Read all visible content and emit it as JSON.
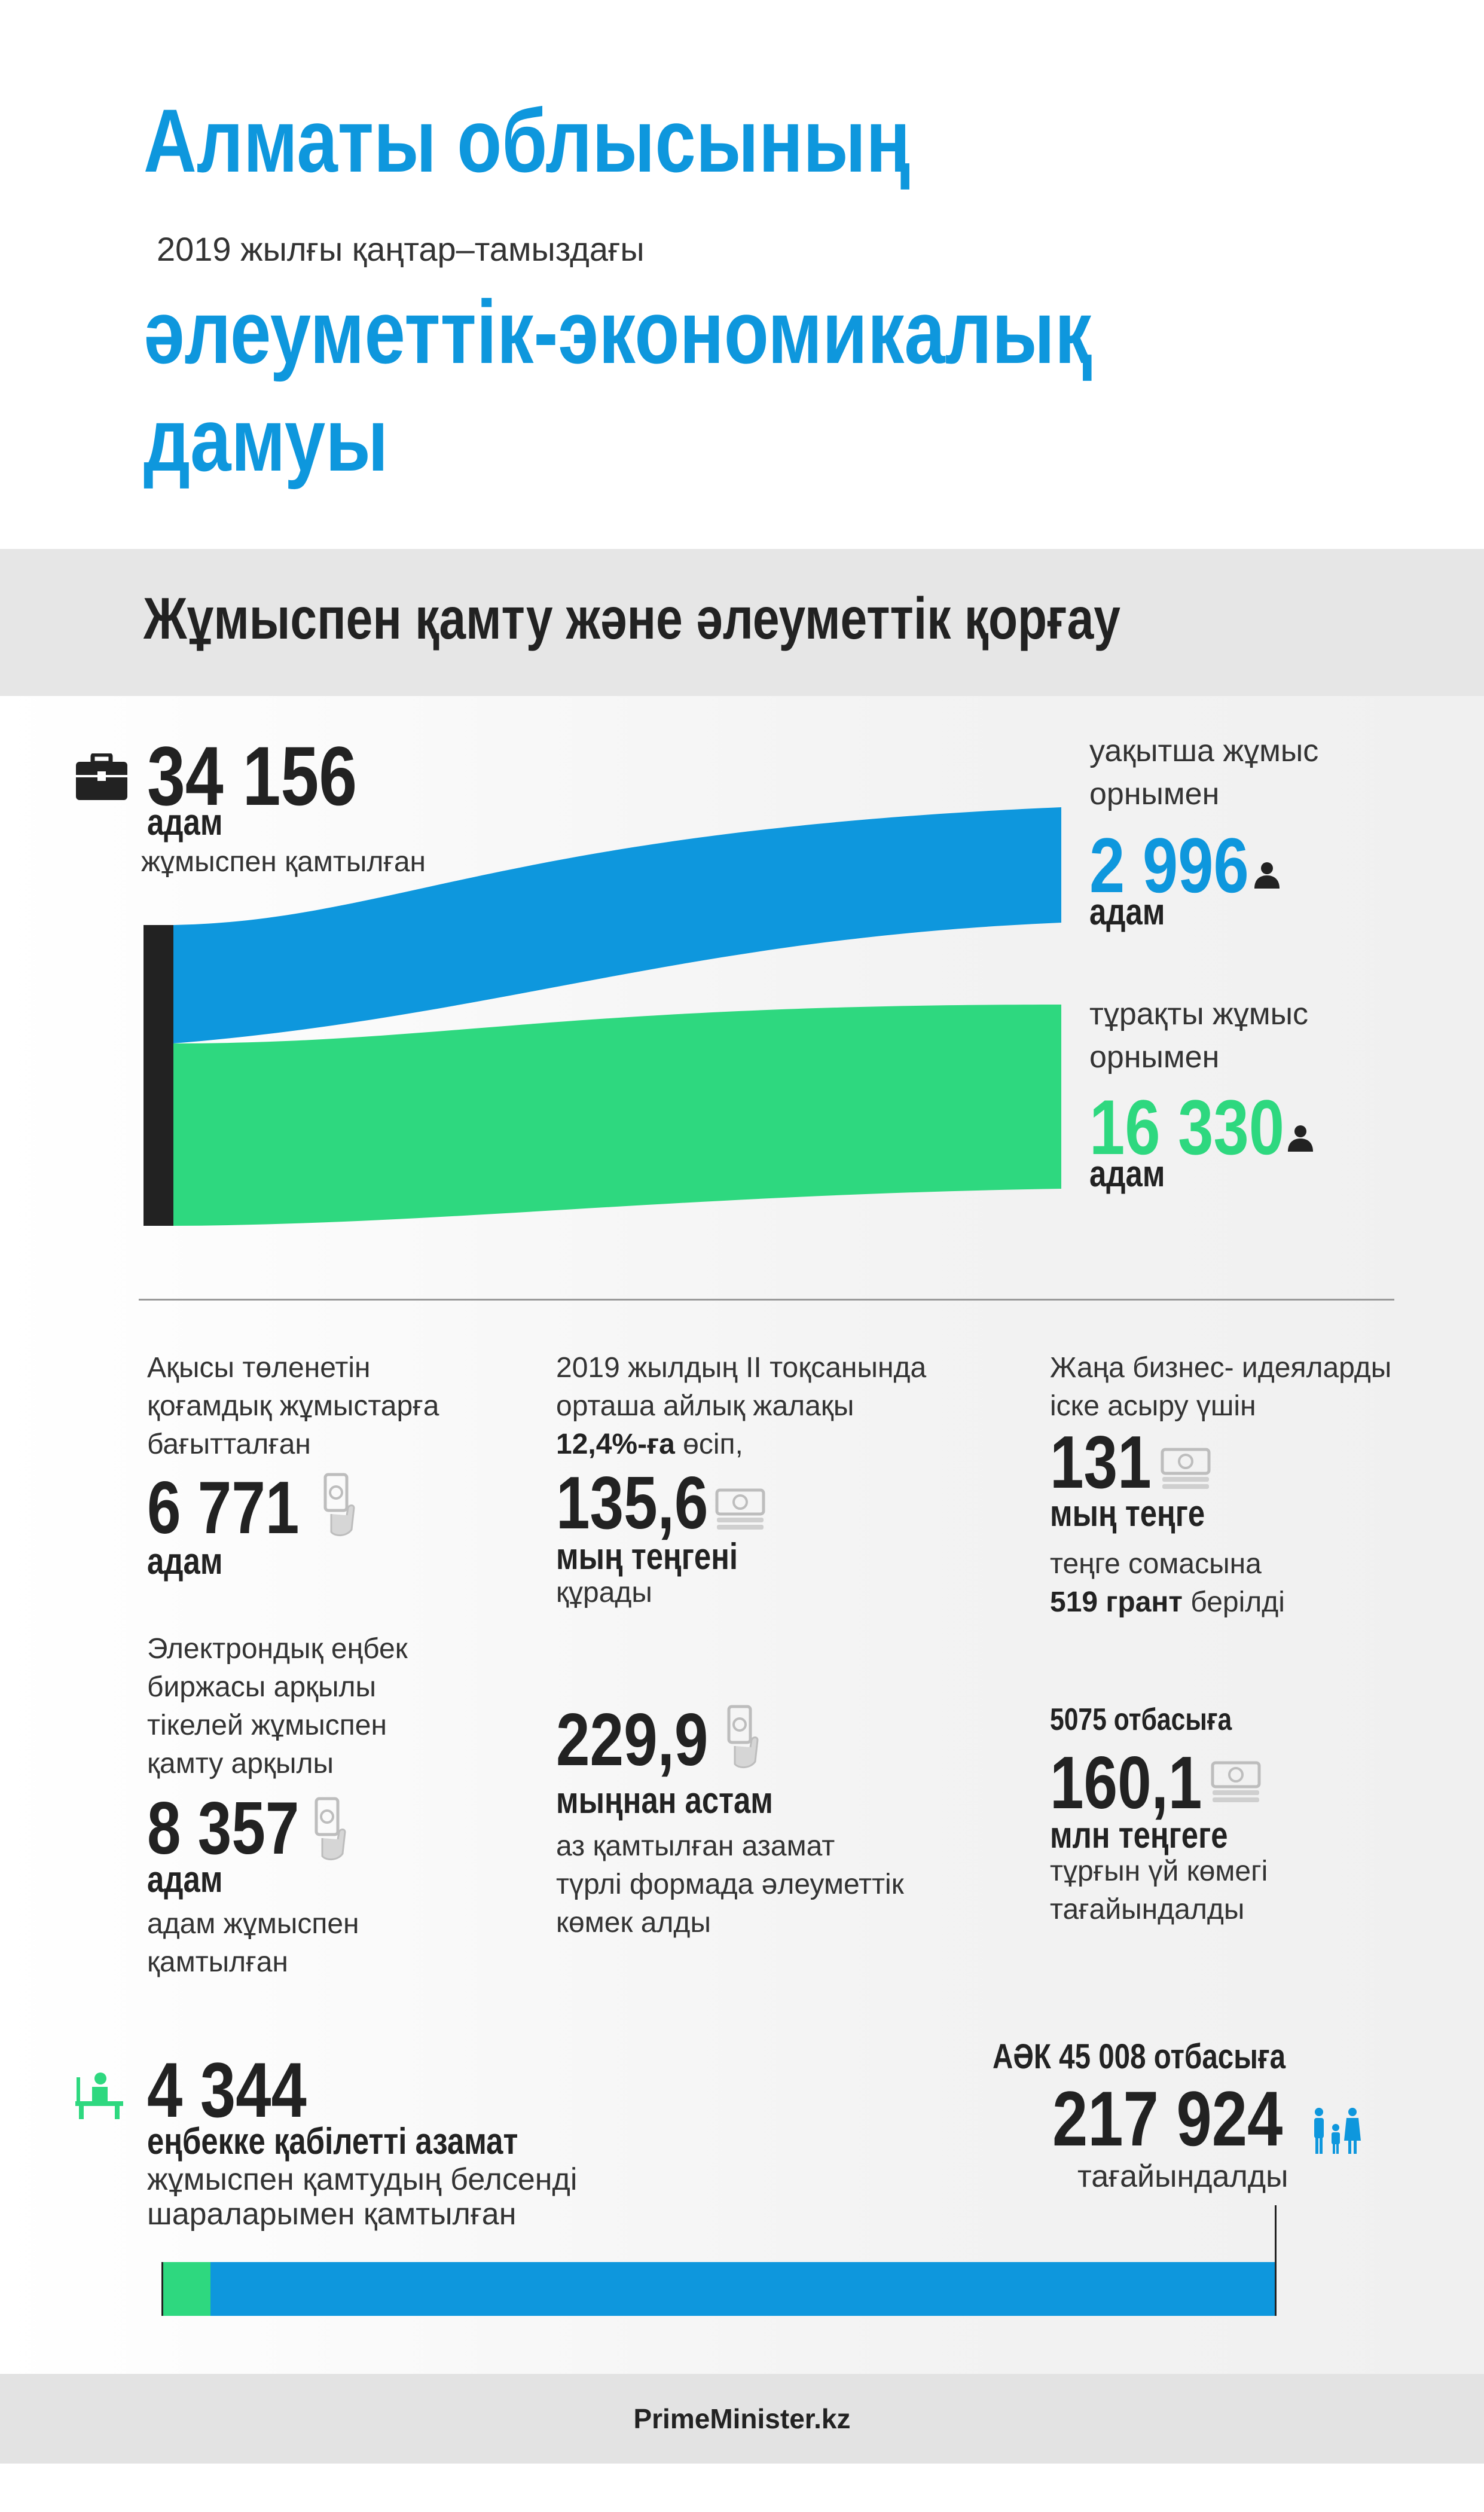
{
  "header": {
    "title_line1": "Алматы облысының",
    "subtitle": "2019 жылғы қаңтар–тамыздағы",
    "title_line2": "әлеуметтік-экономикалық",
    "title_line3": "дамуы"
  },
  "section": {
    "title": "Жұмыспен қамту және әлеуметтік қорғау"
  },
  "employed": {
    "value": "34 156",
    "unit": "адам",
    "label": "жұмыспен қамтылған"
  },
  "temporary": {
    "label_line1": "уақытша жұмыс",
    "label_line2": "орнымен",
    "value": "2 996",
    "unit": "адам"
  },
  "permanent": {
    "label_line1": "тұрақты жұмыс",
    "label_line2": "орнымен",
    "value": "16 330",
    "unit": "адам"
  },
  "public_works": {
    "text_line1": "Ақысы төленетін",
    "text_line2": "қоғамдық жұмыстарға",
    "text_line3": "бағытталған",
    "value": "6 771",
    "unit": "адам"
  },
  "salary": {
    "text_line1": "2019 жылдың II тоқсанында",
    "text_line2": "орташа айлық жалақы",
    "text_bold": "12,4%-ға",
    "text_rest": " өсіп,",
    "value": "135,6",
    "unit": "мың теңгені",
    "after": "құрады"
  },
  "business": {
    "text_line1": "Жаңа бизнес- идеяларды",
    "text_line2": "іске асыру үшін",
    "value": "131",
    "unit": "мың теңге",
    "after_line1": "теңге сомасына",
    "after_bold": "519 грант",
    "after_rest": " берілді"
  },
  "exchange": {
    "text_line1": "Электрондық еңбек",
    "text_line2": "биржасы арқылы",
    "text_line3": "тікелей жұмыспен",
    "text_line4": "қамту арқылы",
    "value": "8 357",
    "unit": "адам",
    "after_line1": "адам жұмыспен",
    "after_line2": "қамтылған"
  },
  "social_help": {
    "value": "229,9",
    "unit": "мыңнан астам",
    "after_line1": "аз қамтылған азамат",
    "after_line2": "түрлі формада әлеуметтік",
    "after_line3": "көмек алды"
  },
  "housing": {
    "top_bold": "5075 отбасыға",
    "value": "160,1",
    "unit": "млн теңгеге",
    "after_line1": "тұрғын үй көмегі",
    "after_line2": "тағайындалды"
  },
  "active_measures": {
    "value": "4 344",
    "unit": "еңбекке қабілетті азамат",
    "after_line1": "жұмыспен қамтудың белсенді",
    "after_line2": "шараларымен қамтылған"
  },
  "aek": {
    "top_bold": "АӘК 45 008 отбасыға",
    "value": "217 924",
    "after": "тағайындалды"
  },
  "footer": {
    "text": "PrimeMinister.kz"
  },
  "colors": {
    "accent_blue": "#0e97dd",
    "accent_green": "#2ed87f",
    "dark": "#222222"
  }
}
